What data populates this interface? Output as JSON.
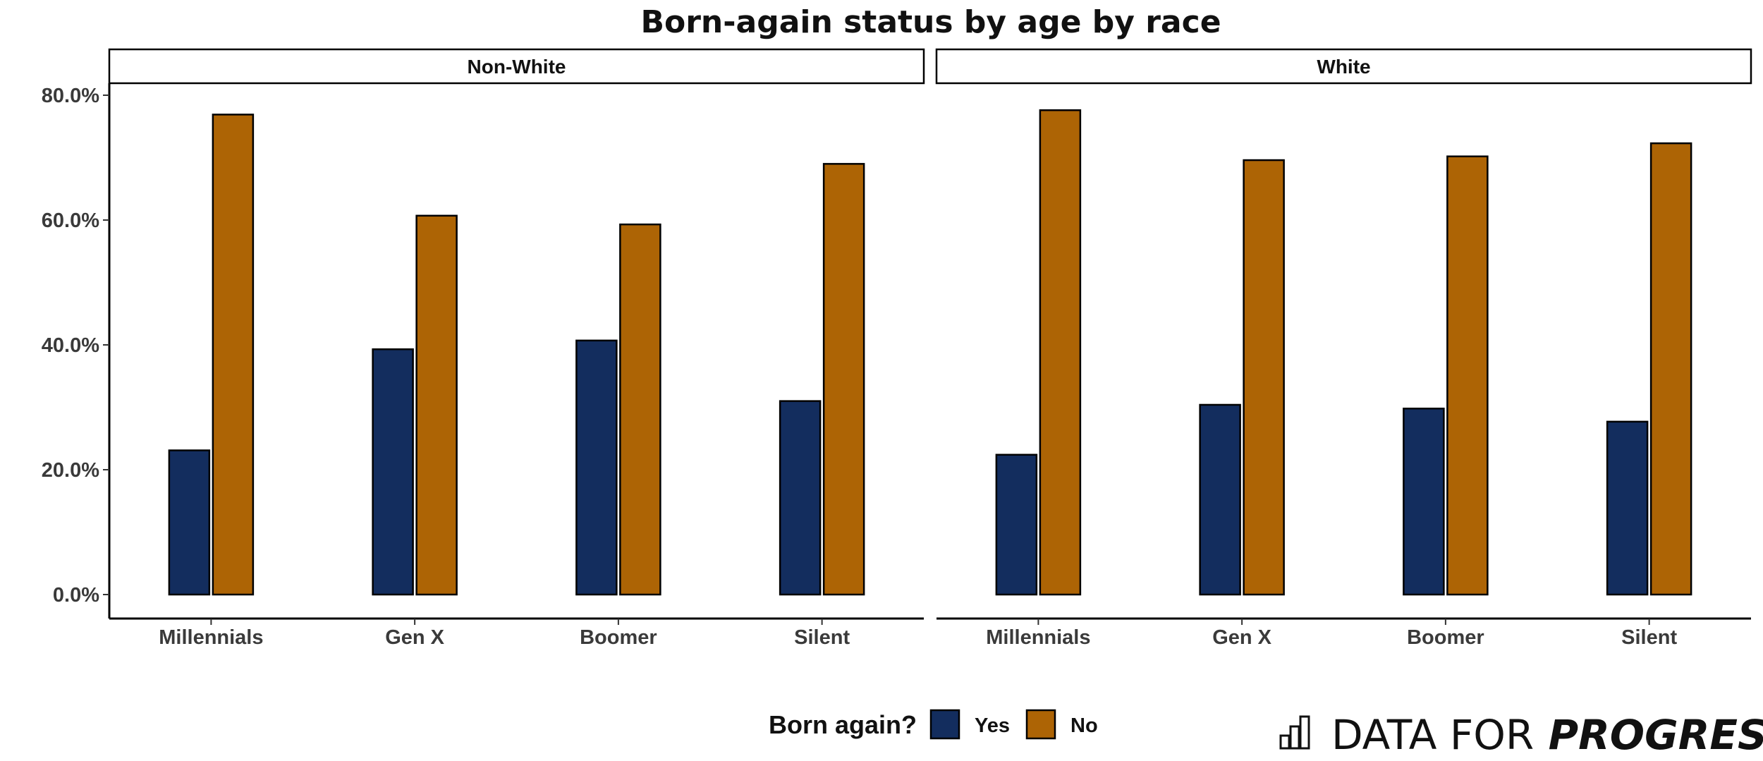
{
  "chart_data": {
    "type": "bar",
    "title": "Born-again status by age by race",
    "xlabel": "",
    "ylabel": "",
    "ylim": [
      0,
      80
    ],
    "y_ticks": [
      "0.0%",
      "20.0%",
      "40.0%",
      "60.0%",
      "80.0%"
    ],
    "y_tick_values": [
      0,
      20,
      40,
      60,
      80
    ],
    "categories": [
      "Millennials",
      "Gen X",
      "Boomer",
      "Silent"
    ],
    "legend": {
      "title": "Born again?",
      "placement": "bottom",
      "entries": [
        "Yes",
        "No"
      ]
    },
    "colors": {
      "Yes": "#132d5e",
      "No": "#ad6405"
    },
    "panels": [
      {
        "name": "Non-White",
        "series": [
          {
            "name": "Yes",
            "values": [
              23.1,
              39.3,
              40.7,
              31.0
            ]
          },
          {
            "name": "No",
            "values": [
              76.9,
              60.7,
              59.3,
              69.0
            ]
          }
        ]
      },
      {
        "name": "White",
        "series": [
          {
            "name": "Yes",
            "values": [
              22.4,
              30.4,
              29.8,
              27.7
            ]
          },
          {
            "name": "No",
            "values": [
              77.6,
              69.6,
              70.2,
              72.3
            ]
          }
        ]
      }
    ]
  },
  "branding": {
    "logo_icon": "bar-chart-icon",
    "text_light": "DATA FOR",
    "text_bold": "PROGRESS"
  }
}
